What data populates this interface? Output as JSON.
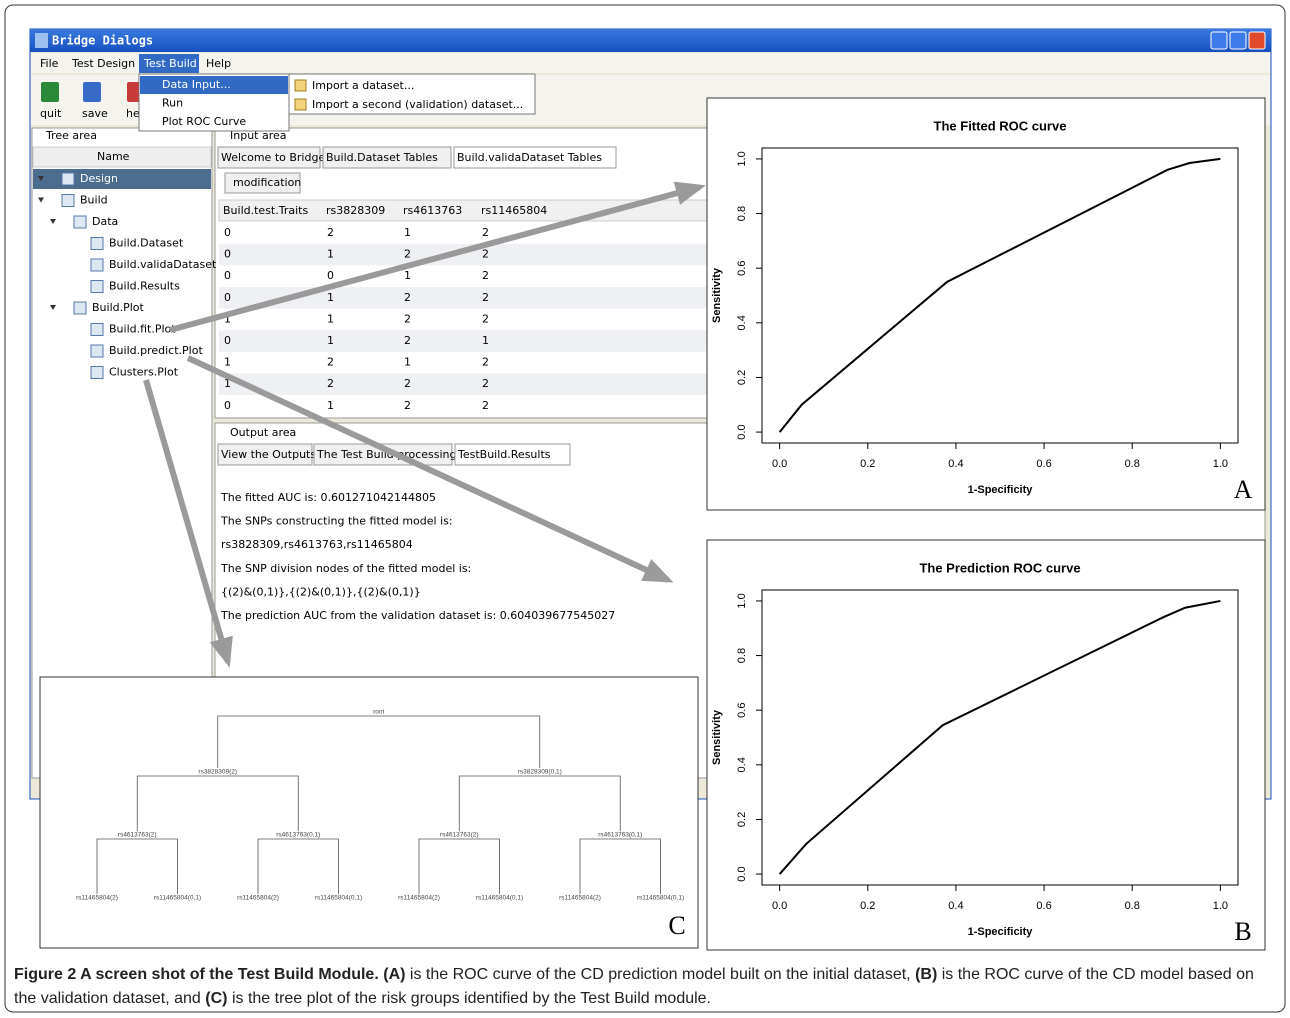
{
  "window": {
    "title": "Bridge Dialogs"
  },
  "menu": [
    "File",
    "Test Design",
    "Test Build",
    "Help"
  ],
  "submenu": [
    "Data Input...",
    "Run",
    "Plot ROC Curve"
  ],
  "subsubmenu": [
    "Import a dataset...",
    "Import a second (validation) dataset..."
  ],
  "toolbar": [
    "quit",
    "save",
    "he"
  ],
  "tree": {
    "header": "Tree area",
    "column": "Name",
    "nodes": [
      "Design",
      "Build",
      "Data",
      "Build.Dataset",
      "Build.validaDataset",
      "Build.Results",
      "Build.Plot",
      "Build.fit.Plot",
      "Build.predict.Plot",
      "Clusters.Plot"
    ]
  },
  "input_area": {
    "header": "Input area",
    "tabs": [
      "Welcome to Bridge",
      "Build.Dataset Tables",
      "Build.validaDataset Tables"
    ],
    "button": "modification",
    "table": {
      "columns": [
        "Build.test.Traits",
        "rs3828309",
        "rs4613763",
        "rs11465804"
      ],
      "rows": [
        [
          0,
          2,
          1,
          2
        ],
        [
          0,
          1,
          2,
          2
        ],
        [
          0,
          0,
          1,
          2
        ],
        [
          0,
          1,
          2,
          2
        ],
        [
          1,
          1,
          2,
          2
        ],
        [
          0,
          1,
          2,
          1
        ],
        [
          1,
          2,
          1,
          2
        ],
        [
          1,
          2,
          2,
          2
        ],
        [
          0,
          1,
          2,
          2
        ]
      ]
    }
  },
  "output_area": {
    "header": "Output area",
    "tabs": [
      "View the Outputs",
      "The Test Build processing",
      "TestBuild.Results"
    ],
    "lines": [
      "The fitted AUC is: 0.601271042144805",
      "The SNPs constructing the fitted model is:",
      "rs3828309,rs4613763,rs11465804",
      "The SNP division nodes of the fitted model is:",
      "{(2)&(0,1)},{(2)&(0,1)},{(2)&(0,1)}",
      "The prediction AUC from the validation dataset is: 0.604039677545027"
    ]
  },
  "chart_data": [
    {
      "type": "line",
      "title": "The Fitted ROC curve",
      "xlabel": "1-Specificity",
      "ylabel": "Sensitivity",
      "x": [
        0,
        0.05,
        0.38,
        0.88,
        0.93,
        1
      ],
      "values": [
        0,
        0.1,
        0.55,
        0.96,
        0.985,
        1
      ],
      "color": "#000000",
      "xlim": [
        -0.04,
        1.04
      ],
      "ylim": [
        -0.04,
        1.04
      ],
      "xticks": [
        {
          "value": 0,
          "label": "0.0"
        },
        0.2,
        0.4,
        0.6,
        0.8,
        {
          "value": 1,
          "label": "1.0"
        }
      ],
      "yticks": [
        {
          "value": 0,
          "label": "0.0"
        },
        0.2,
        0.4,
        0.6,
        0.8,
        {
          "value": 1,
          "label": "1.0"
        }
      ],
      "panel_label": "A"
    },
    {
      "type": "line",
      "title": "The Prediction ROC curve",
      "xlabel": "1-Specificity",
      "ylabel": "Sensitivity",
      "x": [
        0,
        0.06,
        0.37,
        0.87,
        0.92,
        1
      ],
      "values": [
        0,
        0.11,
        0.545,
        0.94,
        0.975,
        1
      ],
      "color": "#000000",
      "xlim": [
        -0.04,
        1.04
      ],
      "ylim": [
        -0.04,
        1.04
      ],
      "xticks": [
        {
          "value": 0,
          "label": "0.0"
        },
        0.2,
        0.4,
        0.6,
        0.8,
        {
          "value": 1,
          "label": "1.0"
        }
      ],
      "yticks": [
        {
          "value": 0,
          "label": "0.0"
        },
        0.2,
        0.4,
        0.6,
        0.8,
        {
          "value": 1,
          "label": "1.0"
        }
      ],
      "panel_label": "B"
    }
  ],
  "tree_plot": {
    "levels": [
      [
        "root"
      ],
      [
        "rs3828309(2)",
        "rs3828309(0,1)"
      ],
      [
        "rs4613763(2)",
        "rs4613763(0,1)",
        "rs4613763(2)",
        "rs4613763(0,1)"
      ],
      [
        "rs11465804(2)",
        "rs11465804(0,1)",
        "rs11465804(2)",
        "rs11465804(0,1)",
        "rs11465804(2)",
        "rs11465804(0,1)",
        "rs11465804(2)",
        "rs11465804(0,1)"
      ]
    ],
    "panel_label": "C"
  },
  "caption": [
    {
      "text": "Figure 2 A screen shot of the Test Build Module.",
      "bold": true
    },
    {
      "text": "(A)",
      "bold": true
    },
    {
      "text": "is the ROC curve of the CD prediction model built on the initial dataset,",
      "bold": false
    },
    {
      "text": "(B)",
      "bold": true
    },
    {
      "text": "is the ROC curve of the CD model based on the validation dataset, and",
      "bold": false
    },
    {
      "text": "(C)",
      "bold": true
    },
    {
      "text": "is the tree plot of the risk groups identified by the Test Build module.",
      "bold": false
    }
  ]
}
